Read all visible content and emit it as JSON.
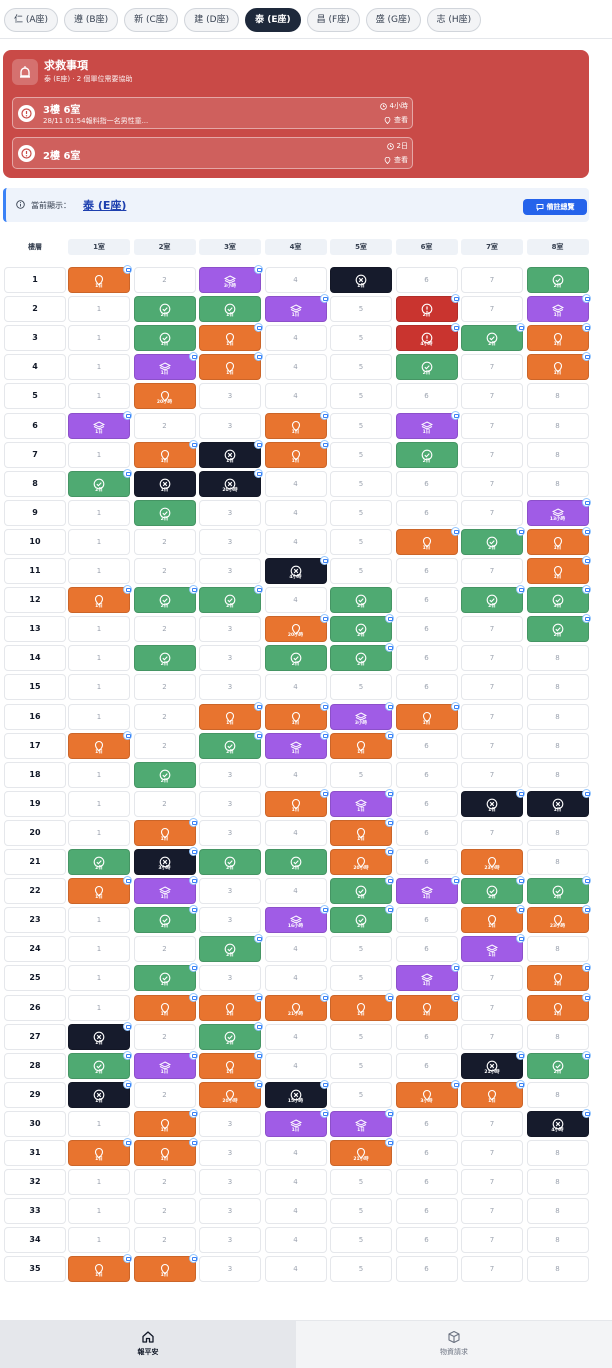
{
  "tabs": [
    "仁 (A座)",
    "遵 (B座)",
    "新 (C座)",
    "建 (D座)",
    "泰 (E座)",
    "昌 (F座)",
    "盛 (G座)",
    "志 (H座)"
  ],
  "active_tab": 4,
  "alert": {
    "title": "求救事項",
    "subtitle": "泰 (E座) · 2 個單位需要協助",
    "items": [
      {
        "title": "3樓 6室",
        "desc": "28/11 01:54報料指一名男性童...",
        "time": "4小時",
        "action": "查看"
      },
      {
        "title": "2樓 6室",
        "desc": "",
        "time": "2日",
        "action": "查看"
      }
    ]
  },
  "current": {
    "label": "當前顯示：",
    "value": "泰 (E座)",
    "button": "備註總覽"
  },
  "grid": {
    "floor_header": "樓層",
    "room_headers": [
      "1室",
      "2室",
      "3室",
      "4室",
      "5室",
      "6室",
      "7室",
      "8室"
    ],
    "floors": [
      {
        "floor": "1",
        "cells": [
          [
            "o",
            "1日",
            1
          ],
          null,
          [
            "p",
            "3小時",
            1
          ],
          null,
          [
            "k",
            "1日",
            0
          ],
          null,
          null,
          [
            "g",
            "2日",
            0
          ]
        ]
      },
      {
        "floor": "2",
        "cells": [
          null,
          [
            "g",
            "2日",
            0
          ],
          [
            "g",
            "1日",
            0
          ],
          [
            "p",
            "1日",
            1
          ],
          null,
          [
            "r",
            "2日",
            1
          ],
          null,
          [
            "p",
            "1日",
            1
          ]
        ]
      },
      {
        "floor": "3",
        "cells": [
          null,
          [
            "g",
            "1日",
            0
          ],
          [
            "o",
            "1日",
            1
          ],
          null,
          null,
          [
            "r",
            "4小時",
            1
          ],
          [
            "g",
            "2日",
            1
          ],
          [
            "o",
            "1日",
            1
          ]
        ]
      },
      {
        "floor": "4",
        "cells": [
          null,
          [
            "p",
            "1日",
            1
          ],
          [
            "o",
            "1日",
            1
          ],
          null,
          null,
          [
            "g",
            "2日",
            0
          ],
          null,
          [
            "o",
            "1日",
            1
          ]
        ]
      },
      {
        "floor": "5",
        "cells": [
          null,
          [
            "o",
            "20小時",
            0
          ],
          null,
          null,
          null,
          null,
          null,
          null
        ]
      },
      {
        "floor": "6",
        "cells": [
          [
            "p",
            "1日",
            1
          ],
          null,
          null,
          [
            "o",
            "1日",
            1
          ],
          null,
          [
            "p",
            "1日",
            1
          ],
          null,
          null
        ]
      },
      {
        "floor": "7",
        "cells": [
          null,
          [
            "o",
            "1日",
            1
          ],
          [
            "k",
            "1日",
            1
          ],
          [
            "o",
            "1日",
            1
          ],
          null,
          [
            "g",
            "2日",
            0
          ],
          null,
          null
        ]
      },
      {
        "floor": "8",
        "cells": [
          [
            "g",
            "2日",
            1
          ],
          [
            "k",
            "1日",
            0
          ],
          [
            "k",
            "20小時",
            1
          ],
          null,
          null,
          null,
          null,
          null
        ]
      },
      {
        "floor": "9",
        "cells": [
          null,
          [
            "g",
            "2日",
            0
          ],
          null,
          null,
          null,
          null,
          null,
          [
            "p",
            "13小時",
            1
          ]
        ]
      },
      {
        "floor": "10",
        "cells": [
          null,
          null,
          null,
          null,
          null,
          [
            "o",
            "1日",
            1
          ],
          [
            "g",
            "2日",
            1
          ],
          [
            "o",
            "1日",
            1
          ]
        ]
      },
      {
        "floor": "11",
        "cells": [
          null,
          null,
          null,
          [
            "k",
            "4小時",
            1
          ],
          null,
          null,
          null,
          [
            "o",
            "1日",
            1
          ]
        ]
      },
      {
        "floor": "12",
        "cells": [
          [
            "o",
            "1日",
            1
          ],
          [
            "g",
            "2日",
            1
          ],
          [
            "g",
            "2日",
            1
          ],
          null,
          [
            "g",
            "2日",
            0
          ],
          null,
          [
            "g",
            "2日",
            1
          ],
          [
            "g",
            "3日",
            1
          ]
        ]
      },
      {
        "floor": "13",
        "cells": [
          null,
          null,
          null,
          [
            "o",
            "20小時",
            1
          ],
          [
            "g",
            "2日",
            1
          ],
          null,
          null,
          [
            "g",
            "2日",
            1
          ]
        ]
      },
      {
        "floor": "14",
        "cells": [
          null,
          [
            "g",
            "2日",
            0
          ],
          null,
          [
            "g",
            "2日",
            0
          ],
          [
            "g",
            "2日",
            1
          ],
          null,
          null,
          null
        ]
      },
      {
        "floor": "15",
        "cells": [
          null,
          null,
          null,
          null,
          null,
          null,
          null,
          null
        ]
      },
      {
        "floor": "16",
        "cells": [
          null,
          null,
          [
            "o",
            "1日",
            1
          ],
          [
            "o",
            "1日",
            1
          ],
          [
            "p",
            "3小時",
            1
          ],
          [
            "o",
            "1日",
            1
          ],
          null,
          null
        ]
      },
      {
        "floor": "17",
        "cells": [
          [
            "o",
            "1日",
            1
          ],
          null,
          [
            "g",
            "2日",
            1
          ],
          [
            "p",
            "1日",
            1
          ],
          [
            "o",
            "1日",
            1
          ],
          null,
          null,
          null
        ]
      },
      {
        "floor": "18",
        "cells": [
          null,
          [
            "g",
            "2日",
            0
          ],
          null,
          null,
          null,
          null,
          null,
          null
        ]
      },
      {
        "floor": "19",
        "cells": [
          null,
          null,
          null,
          [
            "o",
            "1日",
            1
          ],
          [
            "p",
            "1日",
            1
          ],
          null,
          [
            "k",
            "1日",
            1
          ],
          [
            "k",
            "1日",
            1
          ]
        ]
      },
      {
        "floor": "20",
        "cells": [
          null,
          [
            "o",
            "1日",
            1
          ],
          null,
          null,
          [
            "o",
            "1日",
            1
          ],
          null,
          null,
          null
        ]
      },
      {
        "floor": "21",
        "cells": [
          [
            "g",
            "2日",
            0
          ],
          [
            "k",
            "3小時",
            1
          ],
          [
            "g",
            "2日",
            0
          ],
          [
            "g",
            "2日",
            0
          ],
          [
            "o",
            "20小時",
            1
          ],
          null,
          [
            "o",
            "23小時",
            0
          ],
          null
        ]
      },
      {
        "floor": "22",
        "cells": [
          [
            "o",
            "1日",
            1
          ],
          [
            "p",
            "1日",
            1
          ],
          null,
          null,
          [
            "g",
            "1日",
            1
          ],
          [
            "p",
            "1日",
            1
          ],
          [
            "g",
            "2日",
            1
          ],
          [
            "g",
            "2日",
            1
          ]
        ]
      },
      {
        "floor": "23",
        "cells": [
          null,
          [
            "g",
            "1日",
            1
          ],
          null,
          [
            "p",
            "16小時",
            1
          ],
          [
            "g",
            "2日",
            1
          ],
          null,
          [
            "o",
            "1日",
            1
          ],
          [
            "o",
            "23小時",
            1
          ]
        ]
      },
      {
        "floor": "24",
        "cells": [
          null,
          null,
          [
            "g",
            "2日",
            1
          ],
          null,
          null,
          null,
          [
            "p",
            "1日",
            1
          ],
          null
        ]
      },
      {
        "floor": "25",
        "cells": [
          null,
          [
            "g",
            "1日",
            1
          ],
          null,
          null,
          null,
          [
            "p",
            "1日",
            1
          ],
          null,
          [
            "o",
            "1日",
            1
          ]
        ]
      },
      {
        "floor": "26",
        "cells": [
          null,
          [
            "o",
            "1日",
            1
          ],
          [
            "o",
            "1日",
            1
          ],
          [
            "o",
            "21小時",
            1
          ],
          [
            "o",
            "1日",
            1
          ],
          [
            "o",
            "1日",
            1
          ],
          null,
          [
            "o",
            "1日",
            1
          ]
        ]
      },
      {
        "floor": "27",
        "cells": [
          [
            "k",
            "1日",
            1
          ],
          null,
          [
            "g",
            "2日",
            1
          ],
          null,
          null,
          null,
          null,
          null
        ]
      },
      {
        "floor": "28",
        "cells": [
          [
            "g",
            "2日",
            1
          ],
          [
            "p",
            "1日",
            1
          ],
          [
            "o",
            "1日",
            1
          ],
          null,
          null,
          null,
          [
            "k",
            "21小時",
            1
          ],
          [
            "g",
            "2日",
            1
          ]
        ]
      },
      {
        "floor": "29",
        "cells": [
          [
            "k",
            "1日",
            1
          ],
          null,
          [
            "o",
            "20小時",
            1
          ],
          [
            "k",
            "15小時",
            1
          ],
          null,
          [
            "o",
            "3小時",
            1
          ],
          [
            "o",
            "1日",
            1
          ],
          null
        ]
      },
      {
        "floor": "30",
        "cells": [
          null,
          [
            "o",
            "1日",
            1
          ],
          null,
          [
            "p",
            "1日",
            1
          ],
          [
            "p",
            "1日",
            1
          ],
          null,
          null,
          [
            "k",
            "4小時",
            1
          ]
        ]
      },
      {
        "floor": "31",
        "cells": [
          [
            "o",
            "1日",
            1
          ],
          [
            "o",
            "1日",
            1
          ],
          null,
          null,
          [
            "o",
            "21小時",
            1
          ],
          null,
          null,
          null
        ]
      },
      {
        "floor": "32",
        "cells": [
          null,
          null,
          null,
          null,
          null,
          null,
          null,
          null
        ]
      },
      {
        "floor": "33",
        "cells": [
          null,
          null,
          null,
          null,
          null,
          null,
          null,
          null
        ]
      },
      {
        "floor": "34",
        "cells": [
          null,
          null,
          null,
          null,
          null,
          null,
          null,
          null
        ]
      },
      {
        "floor": "35",
        "cells": [
          [
            "o",
            "1日",
            1
          ],
          [
            "o",
            "1日",
            1
          ],
          null,
          null,
          null,
          null,
          null,
          null
        ]
      }
    ]
  },
  "status_colors": {
    "o": "#e8742f",
    "g": "#4faa72",
    "p": "#a05ce6",
    "k": "#161b2c",
    "r": "#c9342f"
  },
  "status_icons": {
    "o": "pin-icon",
    "g": "check-circle-icon",
    "p": "layers-icon",
    "k": "x-circle-icon",
    "r": "alert-circle-icon"
  },
  "bottom_nav": [
    {
      "label": "報平安",
      "icon": "home-icon"
    },
    {
      "label": "物資請求",
      "icon": "box-icon"
    }
  ]
}
